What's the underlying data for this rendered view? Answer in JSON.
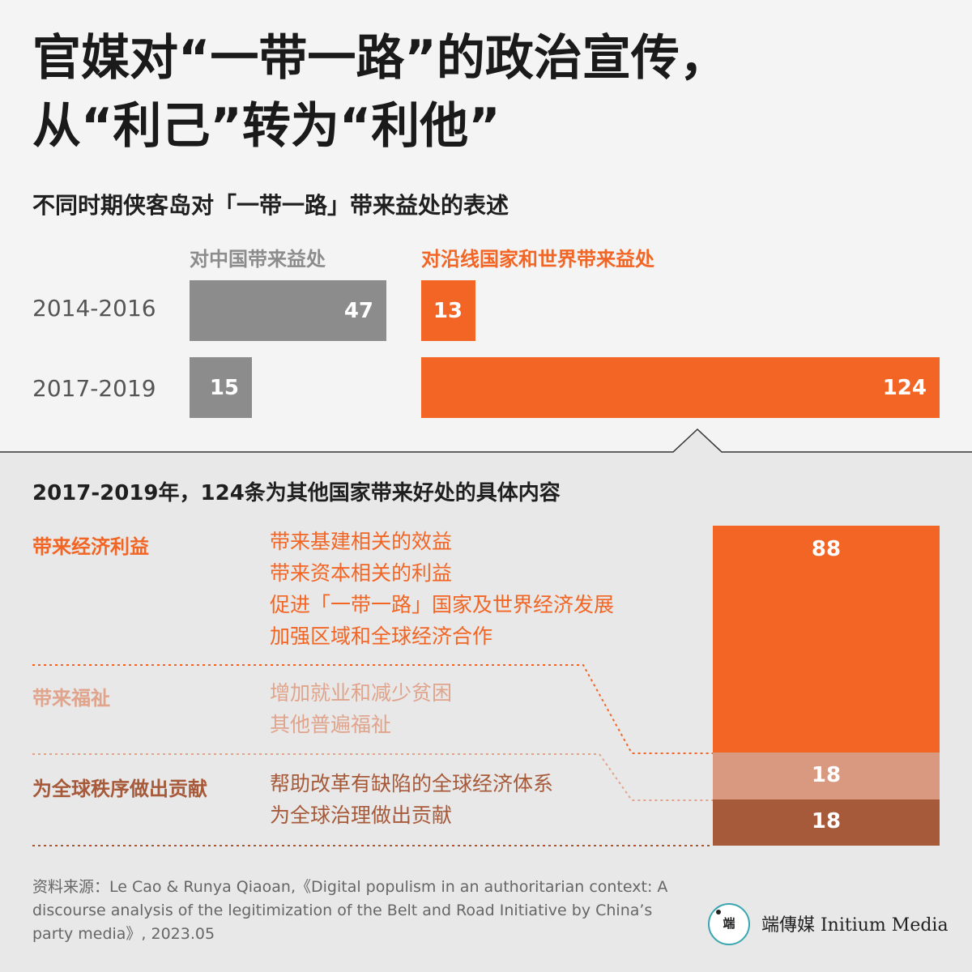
{
  "title": {
    "line1": "官媒对“一带一路”的政治宣传，",
    "line2": "从“利己”转为“利他”"
  },
  "subtitle": "不同时期侠客岛对「一带一路」带来益处的表述",
  "colors": {
    "gray": "#8c8c8c",
    "orange": "#f26524",
    "light_orange": "#d99880",
    "dark_orange": "#a65a3a",
    "welfare_text": "#e0a48c",
    "global_text": "#a65a3a"
  },
  "chart_data": [
    {
      "type": "bar",
      "title": "不同时期侠客岛对「一带一路」带来益处的表述",
      "categories": [
        "2014-2016",
        "2017-2019"
      ],
      "series": [
        {
          "name": "对中国带来益处",
          "values": [
            47,
            15
          ]
        },
        {
          "name": "对沿线国家和世界带来益处",
          "values": [
            13,
            124
          ]
        }
      ]
    },
    {
      "type": "bar",
      "title": "2017-2019年，124条为其他国家带来好处的具体内容",
      "categories": [
        "带来经济利益",
        "带来福祉",
        "为全球秩序做出贡献"
      ],
      "values": [
        88,
        18,
        18
      ]
    }
  ],
  "section2": {
    "title": "2017-2019年，124条为其他国家带来好处的具体内容",
    "categories": [
      {
        "label": "带来经济利益",
        "items": [
          "带来基建相关的效益",
          "带来资本相关的利益",
          "促进「一带一路」国家及世界经济发展",
          "加强区域和全球经济合作"
        ]
      },
      {
        "label": "带来福祉",
        "items": [
          "增加就业和减少贫困",
          "其他普遍福祉"
        ]
      },
      {
        "label": "为全球秩序做出贡献",
        "items": [
          "帮助改革有缺陷的全球经济体系",
          "为全球治理做出贡献"
        ]
      }
    ]
  },
  "source": "资料来源：Le Cao & Runya Qiaoan,《Digital populism in an authoritarian context: A discourse analysis of the legitimization of the Belt and Road Initiative by China’s party media》, 2023.05",
  "logo": {
    "glyph": "端",
    "brand": "端傳媒 Initium Media"
  }
}
